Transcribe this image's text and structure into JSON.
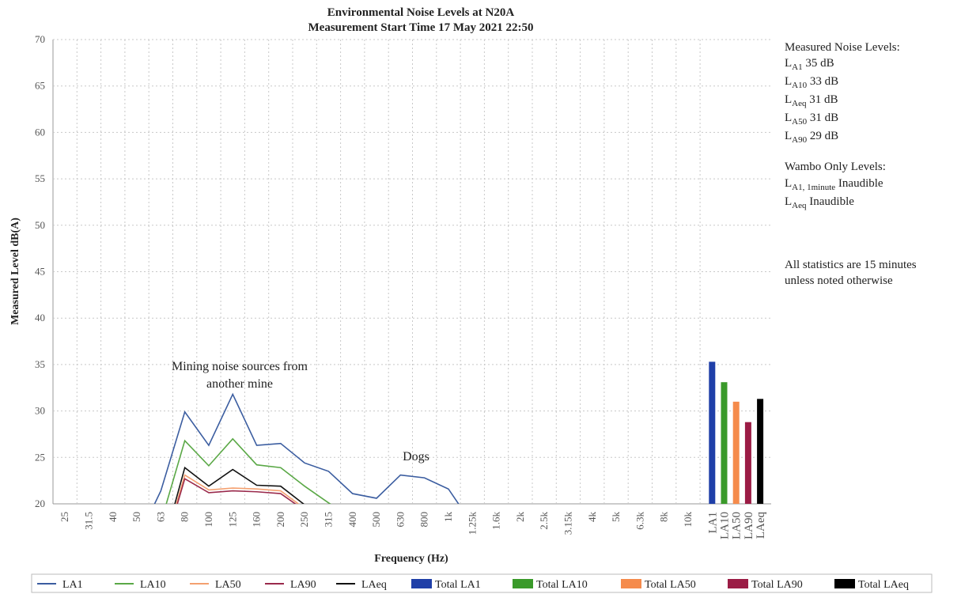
{
  "chart_data": {
    "type": "line",
    "title": "Environmental Noise Levels at N20A",
    "subtitle": "Measurement Start Time 17 May 2021 22:50",
    "x_label": "Frequency (Hz)",
    "y_label": "Measured Level dB(A)",
    "categories": [
      "25",
      "31.5",
      "40",
      "50",
      "63",
      "80",
      "100",
      "125",
      "160",
      "200",
      "250",
      "315",
      "400",
      "500",
      "630",
      "800",
      "1k",
      "1.25k",
      "1.6k",
      "2k",
      "2.5k",
      "3.15k",
      "4k",
      "5k",
      "6.3k",
      "8k",
      "10k"
    ],
    "ylim": [
      20,
      70
    ],
    "yticks": [
      20,
      25,
      30,
      35,
      40,
      45,
      50,
      55,
      60,
      65,
      70
    ],
    "grid": true,
    "series": [
      {
        "name": "LA1",
        "color": "#3b5da0",
        "values": [
          null,
          null,
          null,
          16.0,
          21.4,
          29.9,
          26.3,
          31.8,
          26.3,
          26.5,
          24.4,
          23.5,
          21.1,
          20.6,
          23.1,
          22.8,
          21.6,
          17.8,
          null,
          null,
          null,
          null,
          null,
          null,
          null,
          null,
          null
        ]
      },
      {
        "name": "LA10",
        "color": "#5aa846",
        "values": [
          null,
          null,
          null,
          null,
          18.0,
          26.8,
          24.1,
          27.0,
          24.2,
          23.9,
          21.9,
          20.1,
          18.5,
          null,
          null,
          null,
          null,
          null,
          null,
          null,
          null,
          null,
          null,
          null,
          null,
          null,
          null
        ]
      },
      {
        "name": "LA50",
        "color": "#f4a070",
        "values": [
          null,
          null,
          null,
          null,
          14.2,
          23.1,
          21.5,
          21.7,
          21.6,
          21.4,
          19.5,
          null,
          null,
          null,
          null,
          null,
          null,
          null,
          null,
          null,
          null,
          null,
          null,
          null,
          null,
          null,
          null
        ]
      },
      {
        "name": "LA90",
        "color": "#9a2a4c",
        "values": [
          null,
          null,
          null,
          null,
          14.0,
          22.7,
          21.2,
          21.4,
          21.3,
          21.1,
          19.3,
          null,
          null,
          null,
          null,
          null,
          null,
          null,
          null,
          null,
          null,
          null,
          null,
          null,
          null,
          null,
          null
        ]
      },
      {
        "name": "LAeq",
        "color": "#111111",
        "values": [
          null,
          null,
          null,
          null,
          14.5,
          23.9,
          21.9,
          23.7,
          22.0,
          21.9,
          19.9,
          null,
          null,
          null,
          null,
          null,
          null,
          null,
          null,
          null,
          null,
          null,
          null,
          null,
          null,
          null,
          null
        ]
      }
    ],
    "bars": [
      {
        "name": "Total LA1",
        "category": "LA1",
        "color": "#1f3fa8",
        "value": 35.3
      },
      {
        "name": "Total LA10",
        "category": "LA10",
        "color": "#3a9a2a",
        "value": 33.1
      },
      {
        "name": "Total LA50",
        "category": "LA50",
        "color": "#f58b4c",
        "value": 31.0
      },
      {
        "name": "Total LA90",
        "category": "LA90",
        "color": "#9b1c45",
        "value": 28.8
      },
      {
        "name": "Total LAeq",
        "category": "LAeq",
        "color": "#000000",
        "value": 31.3
      }
    ],
    "annotations": [
      {
        "lines": [
          "Mining noise sources from",
          "another mine"
        ]
      },
      {
        "lines": [
          "Dogs"
        ]
      }
    ],
    "side_panel": {
      "heading": "Measured Noise Levels:",
      "measured": [
        {
          "symbol": "L",
          "subscript": "A1",
          "text": "35 dB"
        },
        {
          "symbol": "L",
          "subscript": "A10",
          "text": "33 dB"
        },
        {
          "symbol": "L",
          "subscript": "Aeq",
          "text": "31 dB"
        },
        {
          "symbol": "L",
          "subscript": "A50",
          "text": "31 dB"
        },
        {
          "symbol": "L",
          "subscript": "A90",
          "text": "29 dB"
        }
      ],
      "heading2": "Wambo Only Levels:",
      "wambo": [
        {
          "symbol": "L",
          "subscript": "A1, 1minute",
          "text": "Inaudible"
        },
        {
          "symbol": "L",
          "subscript": "Aeq",
          "text": "Inaudible"
        }
      ],
      "note": [
        "All statistics are 15 minutes",
        "unless noted otherwise"
      ]
    }
  }
}
